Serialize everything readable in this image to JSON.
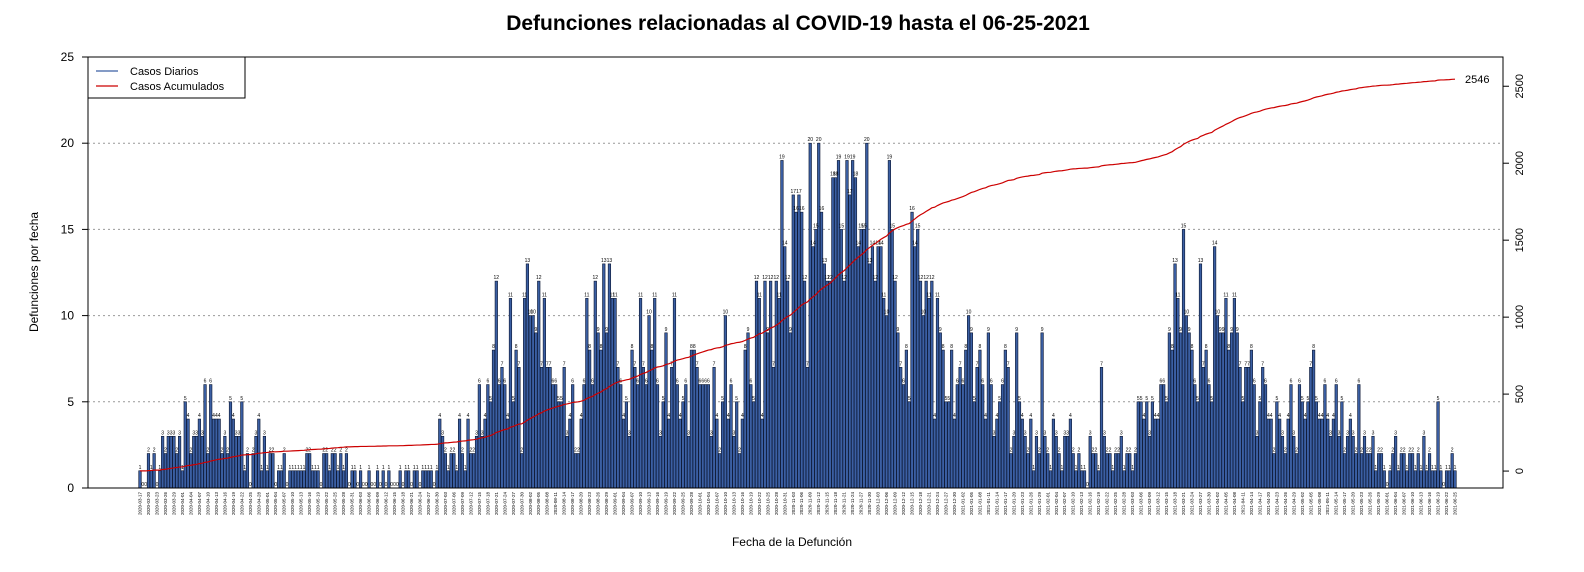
{
  "chart_data": {
    "type": "bar",
    "title": "Defunciones relacionadas al COVID-19 hasta el 06-25-2021",
    "x_label": "Fecha de la Defunción",
    "y_label": "Defunciones por fecha",
    "annotation": "2546",
    "legend": "top-left",
    "grid": true,
    "ylim": [
      0,
      25
    ],
    "yticks": [
      0,
      5,
      10,
      15,
      20,
      25
    ],
    "y2lim": [
      -110,
      2690
    ],
    "y2ticks": [
      0,
      500,
      1000,
      1500,
      2000,
      2500
    ],
    "categories": [
      "2020-03-17",
      null,
      null,
      "2020-03-20",
      null,
      null,
      "2020-03-23",
      null,
      null,
      "2020-03-26",
      null,
      null,
      "2020-03-29",
      null,
      null,
      "2020-04-01",
      null,
      null,
      "2020-04-04",
      null,
      null,
      "2020-04-07",
      null,
      null,
      "2020-04-10",
      null,
      null,
      "2020-04-13",
      null,
      null,
      "2020-04-16",
      null,
      null,
      "2020-04-19",
      null,
      null,
      "2020-04-22",
      null,
      null,
      "2020-04-25",
      null,
      null,
      "2020-04-28",
      null,
      null,
      "2020-05-01",
      null,
      null,
      "2020-05-04",
      null,
      null,
      "2020-05-07",
      null,
      null,
      "2020-05-10",
      null,
      null,
      "2020-05-13",
      null,
      null,
      "2020-05-16",
      null,
      null,
      "2020-05-19",
      null,
      null,
      "2020-05-22",
      null,
      null,
      "2020-05-25",
      null,
      null,
      "2020-05-28",
      null,
      null,
      "2020-05-31",
      null,
      null,
      "2020-06-03",
      null,
      null,
      "2020-06-06",
      null,
      null,
      "2020-06-09",
      null,
      null,
      "2020-06-12",
      null,
      null,
      "2020-06-15",
      null,
      null,
      "2020-06-18",
      null,
      null,
      "2020-06-21",
      null,
      null,
      "2020-06-24",
      null,
      null,
      "2020-06-27",
      null,
      null,
      "2020-06-30",
      null,
      null,
      "2020-07-03",
      null,
      null,
      "2020-07-06",
      null,
      null,
      "2020-07-09",
      null,
      null,
      "2020-07-12",
      null,
      null,
      "2020-07-15",
      null,
      null,
      "2020-07-18",
      null,
      null,
      "2020-07-21",
      null,
      null,
      "2020-07-24",
      null,
      null,
      "2020-07-27",
      null,
      null,
      "2020-07-30",
      null,
      null,
      "2020-08-02",
      null,
      null,
      "2020-08-05",
      null,
      null,
      "2020-08-08",
      null,
      null,
      "2020-08-11",
      null,
      null,
      "2020-08-14",
      null,
      null,
      "2020-08-17",
      null,
      null,
      "2020-08-20",
      null,
      null,
      "2020-08-23",
      null,
      null,
      "2020-08-26",
      null,
      null,
      "2020-08-29",
      null,
      null,
      "2020-09-01",
      null,
      null,
      "2020-09-04",
      null,
      null,
      "2020-09-07",
      null,
      null,
      "2020-09-10",
      null,
      null,
      "2020-09-13",
      null,
      null,
      "2020-09-16",
      null,
      null,
      "2020-09-19",
      null,
      null,
      "2020-09-22",
      null,
      null,
      "2020-09-25",
      null,
      null,
      "2020-09-28",
      null,
      null,
      "2020-10-01",
      null,
      null,
      "2020-10-04",
      null,
      null,
      "2020-10-07",
      null,
      null,
      "2020-10-10",
      null,
      null,
      "2020-10-13",
      null,
      null,
      "2020-10-16",
      null,
      null,
      "2020-10-19",
      null,
      null,
      "2020-10-22",
      null,
      null,
      "2020-10-25",
      null,
      null,
      "2020-10-28",
      null,
      null,
      "2020-10-31",
      null,
      null,
      "2020-11-03",
      null,
      null,
      "2020-11-06",
      null,
      null,
      "2020-11-09",
      null,
      null,
      "2020-11-12",
      null,
      null,
      "2020-11-15",
      null,
      null,
      "2020-11-18",
      null,
      null,
      "2020-11-21",
      null,
      null,
      "2020-11-24",
      null,
      null,
      "2020-11-27",
      null,
      null,
      "2020-11-30",
      null,
      null,
      "2020-12-03",
      null,
      null,
      "2020-12-06",
      null,
      null,
      "2020-12-09",
      null,
      null,
      "2020-12-12",
      null,
      null,
      "2020-12-15",
      null,
      null,
      "2020-12-18",
      null,
      null,
      "2020-12-21",
      null,
      null,
      "2020-12-24",
      null,
      null,
      "2020-12-27",
      null,
      null,
      "2020-12-30",
      null,
      null,
      "2021-01-02",
      null,
      null,
      "2021-01-05",
      null,
      null,
      "2021-01-08",
      null,
      null,
      "2021-01-11",
      null,
      null,
      "2021-01-14",
      null,
      null,
      "2021-01-17",
      null,
      null,
      "2021-01-20",
      null,
      null,
      "2021-01-23",
      null,
      null,
      "2021-01-26",
      null,
      null,
      "2021-01-29",
      null,
      null,
      "2021-02-01",
      null,
      null,
      "2021-02-04",
      null,
      null,
      "2021-02-07",
      null,
      null,
      "2021-02-10",
      null,
      null,
      "2021-02-13",
      null,
      null,
      "2021-02-16",
      null,
      null,
      "2021-02-19",
      null,
      null,
      "2021-02-22",
      null,
      null,
      "2021-02-25",
      null,
      null,
      "2021-02-28",
      null,
      null,
      "2021-03-03",
      null,
      null,
      "2021-03-06",
      null,
      null,
      "2021-03-09",
      null,
      null,
      "2021-03-12",
      null,
      null,
      "2021-03-15",
      null,
      null,
      "2021-03-18",
      null,
      null,
      "2021-03-21",
      null,
      null,
      "2021-03-24",
      null,
      null,
      "2021-03-27",
      null,
      null,
      "2021-03-30",
      null,
      null,
      "2021-04-02",
      null,
      null,
      "2021-04-05",
      null,
      null,
      "2021-04-08",
      null,
      null,
      "2021-04-11",
      null,
      null,
      "2021-04-14",
      null,
      null,
      "2021-04-17",
      null,
      null,
      "2021-04-20",
      null,
      null,
      "2021-04-23",
      null,
      null,
      "2021-04-26",
      null,
      null,
      "2021-04-29",
      null,
      null,
      "2021-05-02",
      null,
      null,
      "2021-05-05",
      null,
      null,
      "2021-05-08",
      null,
      null,
      "2021-05-11",
      null,
      null,
      "2021-05-14",
      null,
      null,
      "2021-05-17",
      null,
      null,
      "2021-05-20",
      null,
      null,
      "2021-05-23",
      null,
      null,
      "2021-05-26",
      null,
      null,
      "2021-05-29",
      null,
      null,
      "2021-06-01",
      null,
      null,
      "2021-06-04",
      null,
      null,
      "2021-06-07",
      null,
      null,
      "2021-06-10",
      null,
      null,
      "2021-06-13",
      null,
      null,
      "2021-06-16",
      null,
      null,
      "2021-06-19",
      null,
      null,
      "2021-06-22",
      null,
      null,
      "2021-06-25"
    ],
    "series": [
      {
        "name": "Casos Diarios",
        "color": "#3b5fa3",
        "values": [
          1,
          0,
          0,
          2,
          1,
          2,
          0,
          1,
          3,
          2,
          3,
          3,
          3,
          2,
          3,
          1,
          5,
          4,
          2,
          3,
          3,
          4,
          3,
          6,
          2,
          6,
          4,
          4,
          4,
          2,
          3,
          2,
          5,
          4,
          3,
          3,
          5,
          1,
          2,
          0,
          2,
          3,
          4,
          1,
          3,
          1,
          2,
          2,
          0,
          1,
          1,
          2,
          0,
          1,
          1,
          1,
          1,
          1,
          1,
          2,
          2,
          1,
          1,
          1,
          0,
          2,
          2,
          1,
          2,
          2,
          1,
          2,
          1,
          2,
          0,
          1,
          1,
          0,
          1,
          0,
          0,
          1,
          0,
          0,
          1,
          0,
          1,
          0,
          1,
          0,
          0,
          0,
          1,
          0,
          1,
          1,
          0,
          1,
          1,
          0,
          1,
          1,
          1,
          1,
          0,
          1,
          4,
          3,
          2,
          1,
          2,
          2,
          1,
          4,
          2,
          1,
          4,
          2,
          2,
          3,
          6,
          3,
          4,
          6,
          5,
          8,
          12,
          6,
          7,
          6,
          4,
          11,
          5,
          8,
          7,
          2,
          11,
          13,
          10,
          10,
          9,
          12,
          7,
          11,
          7,
          7,
          6,
          6,
          5,
          5,
          7,
          3,
          4,
          6,
          2,
          2,
          4,
          6,
          11,
          8,
          6,
          12,
          9,
          8,
          13,
          9,
          13,
          11,
          11,
          7,
          6,
          4,
          5,
          3,
          8,
          7,
          6,
          11,
          7,
          6,
          10,
          8,
          11,
          6,
          3,
          5,
          9,
          4,
          7,
          11,
          6,
          4,
          5,
          6,
          3,
          8,
          8,
          7,
          6,
          6,
          6,
          6,
          3,
          7,
          4,
          2,
          5,
          10,
          4,
          6,
          3,
          5,
          2,
          4,
          8,
          9,
          6,
          5,
          12,
          11,
          4,
          12,
          9,
          12,
          7,
          12,
          11,
          19,
          14,
          12,
          9,
          17,
          16,
          17,
          16,
          12,
          7,
          20,
          14,
          15,
          20,
          16,
          13,
          12,
          12,
          18,
          18,
          19,
          15,
          12,
          19,
          17,
          19,
          18,
          14,
          15,
          15,
          20,
          13,
          14,
          12,
          14,
          14,
          11,
          10,
          19,
          15,
          12,
          9,
          7,
          6,
          8,
          5,
          16,
          14,
          15,
          12,
          10,
          12,
          11,
          12,
          4,
          11,
          9,
          8,
          5,
          5,
          8,
          4,
          6,
          7,
          6,
          8,
          10,
          9,
          5,
          7,
          8,
          6,
          4,
          9,
          6,
          3,
          4,
          5,
          6,
          8,
          7,
          2,
          3,
          9,
          5,
          4,
          3,
          2,
          4,
          1,
          3,
          2,
          9,
          3,
          2,
          1,
          4,
          3,
          2,
          1,
          3,
          3,
          4,
          2,
          1,
          2,
          1,
          1,
          0,
          3,
          2,
          2,
          1,
          7,
          3,
          2,
          2,
          1,
          2,
          2,
          3,
          1,
          2,
          2,
          1,
          2,
          5,
          5,
          4,
          5,
          3,
          5,
          4,
          4,
          6,
          6,
          5,
          9,
          8,
          13,
          11,
          9,
          15,
          10,
          9,
          8,
          6,
          5,
          13,
          7,
          8,
          6,
          5,
          14,
          10,
          9,
          9,
          11,
          8,
          9,
          11,
          9,
          7,
          5,
          7,
          7,
          8,
          6,
          3,
          5,
          7,
          6,
          4,
          4,
          2,
          5,
          4,
          3,
          2,
          4,
          6,
          3,
          2,
          6,
          5,
          4,
          5,
          7,
          8,
          5,
          4,
          4,
          6,
          4,
          3,
          4,
          6,
          3,
          5,
          2,
          3,
          4,
          3,
          2,
          6,
          2,
          3,
          2,
          2,
          3,
          1,
          2,
          2,
          1,
          0,
          1,
          2,
          3,
          1,
          2,
          2,
          1,
          2,
          2,
          1,
          2,
          1,
          3,
          1,
          2,
          1,
          1,
          5,
          1,
          0,
          1,
          1,
          2,
          1
        ]
      },
      {
        "name": "Casos Acumulados",
        "color": "#cc0000",
        "axis": "y2",
        "cumulative": true
      }
    ]
  }
}
